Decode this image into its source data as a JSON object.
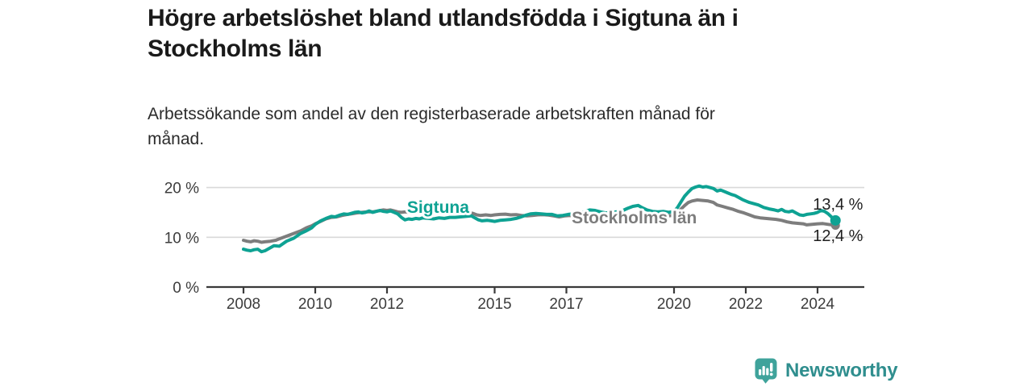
{
  "header": {
    "title": "Högre arbetslöshet bland utlandsfödda i Sigtuna än i\nStockholms län",
    "subtitle": "Arbetssökande som andel av den registerbaserade arbetskraften månad för\nmånad."
  },
  "chart_data": {
    "type": "line",
    "title": "Högre arbetslöshet bland utlandsfödda i Sigtuna än i Stockholms län",
    "subtitle": "Arbetssökande som andel av den registerbaserade arbetskraften månad för månad.",
    "grid": true,
    "x_axis": {
      "ticks": [
        2008,
        2010,
        2012,
        2015,
        2017,
        2020,
        2022,
        2024
      ],
      "range": [
        2007.9,
        2025.3
      ]
    },
    "y_axis": {
      "range": [
        0,
        22
      ],
      "unit": "%",
      "ticks": [
        {
          "value": 0,
          "label": "0 %"
        },
        {
          "value": 10,
          "label": "10 %"
        },
        {
          "value": 20,
          "label": "20 %"
        }
      ]
    },
    "series": [
      {
        "id": "stockholms-lan",
        "name": "Stockholms län",
        "color": "#7d7d7d",
        "label": {
          "year": 2017.15,
          "pct": 12.8
        },
        "end_label": {
          "text": "12,4 %",
          "year": 2023.87,
          "pct": 9.24
        },
        "last_value": 12.4,
        "points": [
          [
            2008.0,
            9.4
          ],
          [
            2008.1,
            9.2
          ],
          [
            2008.2,
            9.1
          ],
          [
            2008.3,
            9.3
          ],
          [
            2008.4,
            9.2
          ],
          [
            2008.5,
            9.0
          ],
          [
            2008.6,
            9.1
          ],
          [
            2008.75,
            9.2
          ],
          [
            2008.9,
            9.4
          ],
          [
            2009.0,
            9.7
          ],
          [
            2009.15,
            10.1
          ],
          [
            2009.3,
            10.5
          ],
          [
            2009.45,
            10.9
          ],
          [
            2009.6,
            11.3
          ],
          [
            2009.75,
            11.9
          ],
          [
            2009.9,
            12.3
          ],
          [
            2010.0,
            12.7
          ],
          [
            2010.15,
            13.2
          ],
          [
            2010.3,
            13.7
          ],
          [
            2010.45,
            14.0
          ],
          [
            2010.6,
            14.1
          ],
          [
            2010.75,
            14.4
          ],
          [
            2010.9,
            14.6
          ],
          [
            2011.0,
            14.7
          ],
          [
            2011.15,
            14.9
          ],
          [
            2011.3,
            15.0
          ],
          [
            2011.45,
            15.1
          ],
          [
            2011.6,
            15.1
          ],
          [
            2011.75,
            15.3
          ],
          [
            2011.9,
            15.5
          ],
          [
            2012.0,
            15.4
          ],
          [
            2012.1,
            15.5
          ],
          [
            2012.2,
            15.3
          ],
          [
            2012.3,
            15.1
          ],
          [
            2012.4,
            15.0
          ],
          [
            2012.5,
            15.1
          ],
          [
            2012.6,
            15.0
          ],
          [
            2012.75,
            15.2
          ],
          [
            2012.9,
            15.1
          ],
          [
            2013.05,
            15.2
          ],
          [
            2013.2,
            15.1
          ],
          [
            2013.35,
            15.0
          ],
          [
            2013.5,
            15.1
          ],
          [
            2013.65,
            15.0
          ],
          [
            2013.8,
            15.1
          ],
          [
            2013.95,
            15.0
          ],
          [
            2014.1,
            14.9
          ],
          [
            2014.25,
            15.0
          ],
          [
            2014.4,
            14.8
          ],
          [
            2014.5,
            14.5
          ],
          [
            2014.6,
            14.4
          ],
          [
            2014.75,
            14.5
          ],
          [
            2014.9,
            14.4
          ],
          [
            2015.0,
            14.5
          ],
          [
            2015.15,
            14.6
          ],
          [
            2015.3,
            14.65
          ],
          [
            2015.45,
            14.5
          ],
          [
            2015.6,
            14.55
          ],
          [
            2015.75,
            14.4
          ],
          [
            2015.9,
            14.3
          ],
          [
            2016.05,
            14.4
          ],
          [
            2016.2,
            14.5
          ],
          [
            2016.35,
            14.55
          ],
          [
            2016.5,
            14.45
          ],
          [
            2016.65,
            14.3
          ],
          [
            2016.8,
            14.1
          ],
          [
            2016.95,
            14.3
          ],
          [
            2017.1,
            14.4
          ],
          [
            2017.25,
            14.3
          ],
          [
            2017.4,
            14.2
          ],
          [
            2017.55,
            14.3
          ],
          [
            2017.7,
            14.2
          ],
          [
            2017.85,
            14.1
          ],
          [
            2018.0,
            14.0
          ],
          [
            2018.2,
            13.9
          ],
          [
            2018.4,
            14.0
          ],
          [
            2018.6,
            13.9
          ],
          [
            2018.8,
            14.0
          ],
          [
            2019.0,
            13.9
          ],
          [
            2019.2,
            14.0
          ],
          [
            2019.4,
            14.1
          ],
          [
            2019.6,
            14.2
          ],
          [
            2019.8,
            14.3
          ],
          [
            2019.95,
            14.4
          ],
          [
            2020.1,
            14.9
          ],
          [
            2020.2,
            15.7
          ],
          [
            2020.3,
            16.4
          ],
          [
            2020.4,
            17.0
          ],
          [
            2020.5,
            17.3
          ],
          [
            2020.65,
            17.5
          ],
          [
            2020.8,
            17.4
          ],
          [
            2020.95,
            17.3
          ],
          [
            2021.1,
            17.0
          ],
          [
            2021.2,
            16.5
          ],
          [
            2021.35,
            16.2
          ],
          [
            2021.5,
            15.9
          ],
          [
            2021.65,
            15.6
          ],
          [
            2021.8,
            15.2
          ],
          [
            2021.95,
            14.9
          ],
          [
            2022.1,
            14.5
          ],
          [
            2022.25,
            14.1
          ],
          [
            2022.4,
            13.9
          ],
          [
            2022.55,
            13.8
          ],
          [
            2022.7,
            13.7
          ],
          [
            2022.85,
            13.6
          ],
          [
            2023.0,
            13.4
          ],
          [
            2023.15,
            13.1
          ],
          [
            2023.3,
            12.9
          ],
          [
            2023.45,
            12.8
          ],
          [
            2023.6,
            12.7
          ],
          [
            2023.7,
            12.5
          ],
          [
            2023.85,
            12.6
          ],
          [
            2024.0,
            12.7
          ],
          [
            2024.15,
            12.75
          ],
          [
            2024.3,
            12.6
          ],
          [
            2024.4,
            12.5
          ],
          [
            2024.5,
            12.4
          ]
        ]
      },
      {
        "id": "sigtuna",
        "name": "Sigtuna",
        "color": "#0ea293",
        "label": {
          "year": 2012.56,
          "pct": 14.9
        },
        "end_label": {
          "text": "13,4 %",
          "year": 2023.87,
          "pct": 15.56
        },
        "last_value": 13.4,
        "points": [
          [
            2008.0,
            7.6
          ],
          [
            2008.1,
            7.4
          ],
          [
            2008.2,
            7.3
          ],
          [
            2008.3,
            7.5
          ],
          [
            2008.4,
            7.6
          ],
          [
            2008.5,
            7.1
          ],
          [
            2008.6,
            7.3
          ],
          [
            2008.75,
            7.9
          ],
          [
            2008.85,
            8.3
          ],
          [
            2009.0,
            8.2
          ],
          [
            2009.2,
            9.2
          ],
          [
            2009.4,
            9.8
          ],
          [
            2009.5,
            10.3
          ],
          [
            2009.6,
            10.8
          ],
          [
            2009.75,
            11.3
          ],
          [
            2009.9,
            11.9
          ],
          [
            2010.0,
            12.6
          ],
          [
            2010.15,
            13.3
          ],
          [
            2010.3,
            13.8
          ],
          [
            2010.45,
            14.2
          ],
          [
            2010.55,
            14.1
          ],
          [
            2010.7,
            14.5
          ],
          [
            2010.8,
            14.7
          ],
          [
            2010.9,
            14.6
          ],
          [
            2011.0,
            14.8
          ],
          [
            2011.1,
            15.0
          ],
          [
            2011.2,
            15.1
          ],
          [
            2011.3,
            14.9
          ],
          [
            2011.4,
            15.0
          ],
          [
            2011.5,
            15.3
          ],
          [
            2011.6,
            15.0
          ],
          [
            2011.7,
            15.2
          ],
          [
            2011.8,
            15.4
          ],
          [
            2011.9,
            15.2
          ],
          [
            2012.0,
            15.1
          ],
          [
            2012.1,
            15.3
          ],
          [
            2012.2,
            15.0
          ],
          [
            2012.3,
            14.7
          ],
          [
            2012.4,
            14.0
          ],
          [
            2012.5,
            13.5
          ],
          [
            2012.6,
            13.7
          ],
          [
            2012.7,
            13.6
          ],
          [
            2012.8,
            13.8
          ],
          [
            2012.9,
            13.7
          ],
          [
            2013.0,
            13.9
          ],
          [
            2013.15,
            13.8
          ],
          [
            2013.3,
            13.7
          ],
          [
            2013.45,
            13.9
          ],
          [
            2013.6,
            13.8
          ],
          [
            2013.75,
            14.0
          ],
          [
            2013.9,
            14.0
          ],
          [
            2014.05,
            14.1
          ],
          [
            2014.2,
            14.2
          ],
          [
            2014.35,
            14.3
          ],
          [
            2014.45,
            13.9
          ],
          [
            2014.55,
            13.5
          ],
          [
            2014.65,
            13.3
          ],
          [
            2014.8,
            13.4
          ],
          [
            2014.9,
            13.3
          ],
          [
            2015.0,
            13.2
          ],
          [
            2015.15,
            13.4
          ],
          [
            2015.3,
            13.5
          ],
          [
            2015.45,
            13.6
          ],
          [
            2015.6,
            13.8
          ],
          [
            2015.7,
            14.0
          ],
          [
            2015.85,
            14.4
          ],
          [
            2016.0,
            14.7
          ],
          [
            2016.15,
            14.8
          ],
          [
            2016.3,
            14.7
          ],
          [
            2016.45,
            14.6
          ],
          [
            2016.6,
            14.6
          ],
          [
            2016.75,
            14.3
          ],
          [
            2016.9,
            14.4
          ],
          [
            2017.05,
            14.6
          ],
          [
            2017.2,
            14.7
          ],
          [
            2017.35,
            14.9
          ],
          [
            2017.5,
            15.1
          ],
          [
            2017.65,
            15.5
          ],
          [
            2017.8,
            15.4
          ],
          [
            2017.95,
            15.1
          ],
          [
            2018.1,
            14.9
          ],
          [
            2018.25,
            15.0
          ],
          [
            2018.4,
            15.1
          ],
          [
            2018.55,
            15.3
          ],
          [
            2018.7,
            15.8
          ],
          [
            2018.85,
            16.2
          ],
          [
            2019.0,
            16.4
          ],
          [
            2019.1,
            16.0
          ],
          [
            2019.25,
            15.5
          ],
          [
            2019.4,
            15.2
          ],
          [
            2019.55,
            15.1
          ],
          [
            2019.7,
            15.2
          ],
          [
            2019.85,
            15.0
          ],
          [
            2020.0,
            15.2
          ],
          [
            2020.1,
            16.0
          ],
          [
            2020.2,
            17.2
          ],
          [
            2020.3,
            18.3
          ],
          [
            2020.4,
            19.1
          ],
          [
            2020.5,
            19.8
          ],
          [
            2020.6,
            20.1
          ],
          [
            2020.7,
            20.3
          ],
          [
            2020.8,
            20.1
          ],
          [
            2020.9,
            20.2
          ],
          [
            2021.0,
            20.0
          ],
          [
            2021.1,
            19.8
          ],
          [
            2021.2,
            19.3
          ],
          [
            2021.3,
            19.5
          ],
          [
            2021.4,
            19.2
          ],
          [
            2021.5,
            18.9
          ],
          [
            2021.6,
            18.6
          ],
          [
            2021.7,
            18.4
          ],
          [
            2021.8,
            18.0
          ],
          [
            2021.9,
            17.6
          ],
          [
            2022.0,
            17.3
          ],
          [
            2022.1,
            17.0
          ],
          [
            2022.2,
            16.8
          ],
          [
            2022.35,
            16.5
          ],
          [
            2022.5,
            16.0
          ],
          [
            2022.65,
            15.7
          ],
          [
            2022.8,
            15.5
          ],
          [
            2022.9,
            15.3
          ],
          [
            2023.0,
            15.6
          ],
          [
            2023.1,
            15.2
          ],
          [
            2023.2,
            15.1
          ],
          [
            2023.3,
            15.3
          ],
          [
            2023.4,
            14.9
          ],
          [
            2023.5,
            14.5
          ],
          [
            2023.6,
            14.4
          ],
          [
            2023.7,
            14.6
          ],
          [
            2023.8,
            14.7
          ],
          [
            2023.9,
            14.8
          ],
          [
            2024.0,
            15.0
          ],
          [
            2024.1,
            15.4
          ],
          [
            2024.2,
            15.2
          ],
          [
            2024.3,
            14.7
          ],
          [
            2024.4,
            14.0
          ],
          [
            2024.5,
            13.4
          ]
        ]
      }
    ]
  },
  "footer": {
    "brand": "Newsworthy",
    "icon_color": "#3fa39b",
    "wordmark_color": "#2f8e8e"
  }
}
